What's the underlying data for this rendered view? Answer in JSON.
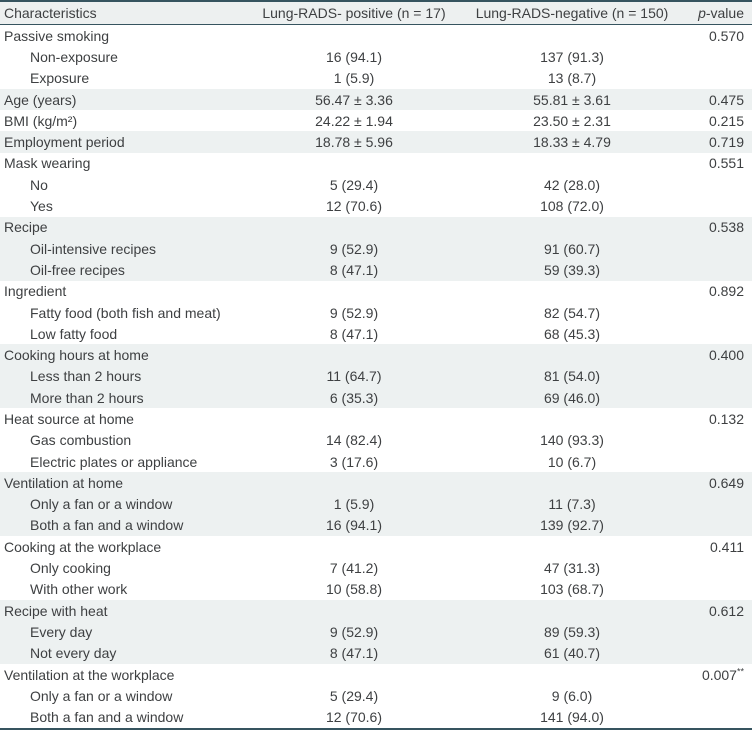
{
  "colors": {
    "border_dark": "#36545f",
    "border_light": "#ccd9dc",
    "header_bg": "#edf0f0",
    "row_shade": "#edf1f1",
    "text": "#3e4042"
  },
  "table": {
    "headers": {
      "characteristics": "Characteristics",
      "positive": "Lung-RADS- positive (n = 17)",
      "negative": "Lung-RADS-negative (n = 150)",
      "p_italic": "p",
      "p_rest": "-value"
    },
    "rows": [
      {
        "label": "Passive smoking",
        "indent": 0,
        "pos": "",
        "neg": "",
        "p": "0.570",
        "shaded": false
      },
      {
        "label": "Non-exposure",
        "indent": 1,
        "pos": "16 (94.1)",
        "neg": "137 (91.3)",
        "p": "",
        "shaded": false
      },
      {
        "label": "Exposure",
        "indent": 1,
        "pos": "1 (5.9)",
        "neg": "13 (8.7)",
        "p": "",
        "shaded": false
      },
      {
        "label": "Age (years)",
        "indent": 0,
        "pos": "56.47 ± 3.36",
        "neg": "55.81 ± 3.61",
        "p": "0.475",
        "shaded": true
      },
      {
        "label": "BMI (kg/m²)",
        "indent": 0,
        "pos": "24.22 ± 1.94",
        "neg": "23.50 ± 2.31",
        "p": "0.215",
        "shaded": false
      },
      {
        "label": "Employment period",
        "indent": 0,
        "pos": "18.78 ± 5.96",
        "neg": "18.33 ± 4.79",
        "p": "0.719",
        "shaded": true
      },
      {
        "label": "Mask wearing",
        "indent": 0,
        "pos": "",
        "neg": "",
        "p": "0.551",
        "shaded": false
      },
      {
        "label": "No",
        "indent": 1,
        "pos": "5 (29.4)",
        "neg": "42 (28.0)",
        "p": "",
        "shaded": false
      },
      {
        "label": "Yes",
        "indent": 1,
        "pos": "12 (70.6)",
        "neg": "108 (72.0)",
        "p": "",
        "shaded": false
      },
      {
        "label": "Recipe",
        "indent": 0,
        "pos": "",
        "neg": "",
        "p": "0.538",
        "shaded": true
      },
      {
        "label": "Oil-intensive recipes",
        "indent": 1,
        "pos": "9 (52.9)",
        "neg": "91 (60.7)",
        "p": "",
        "shaded": true
      },
      {
        "label": "Oil-free recipes",
        "indent": 1,
        "pos": "8 (47.1)",
        "neg": "59 (39.3)",
        "p": "",
        "shaded": true
      },
      {
        "label": "Ingredient",
        "indent": 0,
        "pos": "",
        "neg": "",
        "p": "0.892",
        "shaded": false
      },
      {
        "label": "Fatty food (both fish and meat)",
        "indent": 1,
        "pos": "9 (52.9)",
        "neg": "82 (54.7)",
        "p": "",
        "shaded": false
      },
      {
        "label": "Low fatty food",
        "indent": 1,
        "pos": "8 (47.1)",
        "neg": "68 (45.3)",
        "p": "",
        "shaded": false
      },
      {
        "label": "Cooking hours at home",
        "indent": 0,
        "pos": "",
        "neg": "",
        "p": "0.400",
        "shaded": true
      },
      {
        "label": "Less than 2 hours",
        "indent": 1,
        "pos": "11 (64.7)",
        "neg": "81 (54.0)",
        "p": "",
        "shaded": true
      },
      {
        "label": "More than 2 hours",
        "indent": 1,
        "pos": "6 (35.3)",
        "neg": "69 (46.0)",
        "p": "",
        "shaded": true
      },
      {
        "label": "Heat source at home",
        "indent": 0,
        "pos": "",
        "neg": "",
        "p": "0.132",
        "shaded": false
      },
      {
        "label": "Gas combustion",
        "indent": 1,
        "pos": "14 (82.4)",
        "neg": "140 (93.3)",
        "p": "",
        "shaded": false
      },
      {
        "label": "Electric plates or appliance",
        "indent": 1,
        "pos": "3 (17.6)",
        "neg": "10 (6.7)",
        "p": "",
        "shaded": false
      },
      {
        "label": "Ventilation at home",
        "indent": 0,
        "pos": "",
        "neg": "",
        "p": "0.649",
        "shaded": true
      },
      {
        "label": "Only a fan or a window",
        "indent": 1,
        "pos": "1 (5.9)",
        "neg": "11 (7.3)",
        "p": "",
        "shaded": true
      },
      {
        "label": "Both a fan and a window",
        "indent": 1,
        "pos": "16 (94.1)",
        "neg": "139 (92.7)",
        "p": "",
        "shaded": true
      },
      {
        "label": "Cooking at the workplace",
        "indent": 0,
        "pos": "",
        "neg": "",
        "p": "0.411",
        "shaded": false
      },
      {
        "label": "Only cooking",
        "indent": 1,
        "pos": "7 (41.2)",
        "neg": "47 (31.3)",
        "p": "",
        "shaded": false
      },
      {
        "label": "With other work",
        "indent": 1,
        "pos": "10 (58.8)",
        "neg": "103 (68.7)",
        "p": "",
        "shaded": false
      },
      {
        "label": "Recipe with heat",
        "indent": 0,
        "pos": "",
        "neg": "",
        "p": "0.612",
        "shaded": true
      },
      {
        "label": "Every day",
        "indent": 1,
        "pos": "9 (52.9)",
        "neg": "89 (59.3)",
        "p": "",
        "shaded": true
      },
      {
        "label": "Not every day",
        "indent": 1,
        "pos": "8 (47.1)",
        "neg": "61 (40.7)",
        "p": "",
        "shaded": true
      },
      {
        "label": "Ventilation at the workplace",
        "indent": 0,
        "pos": "",
        "neg": "",
        "p": "0.007",
        "p_sup": "**",
        "shaded": false
      },
      {
        "label": "Only a fan or a window",
        "indent": 1,
        "pos": "5 (29.4)",
        "neg": "9 (6.0)",
        "p": "",
        "shaded": false
      },
      {
        "label": "Both a fan and a window",
        "indent": 1,
        "pos": "12 (70.6)",
        "neg": "141 (94.0)",
        "p": "",
        "shaded": false
      }
    ]
  }
}
